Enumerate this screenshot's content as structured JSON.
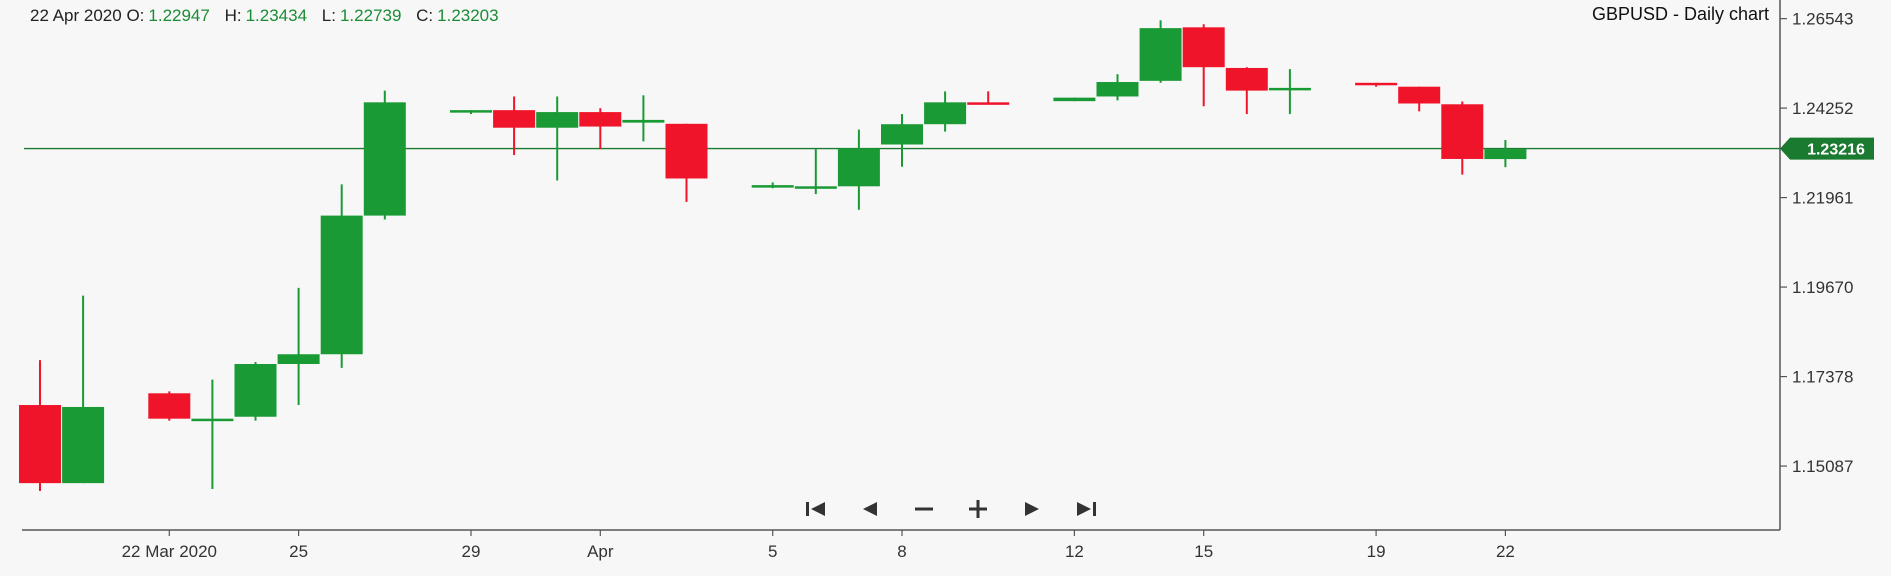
{
  "ohlc_readout": {
    "date": "22 Apr 2020",
    "open_label": "O:",
    "open": "1.22947",
    "high_label": "H:",
    "high": "1.23434",
    "low_label": "L:",
    "low": "1.22739",
    "close_label": "C:",
    "close": "1.23203"
  },
  "nav_controls": [
    {
      "name": "first-icon"
    },
    {
      "name": "prev-icon"
    },
    {
      "name": "zoom-out-icon"
    },
    {
      "name": "zoom-in-icon"
    },
    {
      "name": "next-icon"
    },
    {
      "name": "last-icon"
    }
  ],
  "chart_data": {
    "type": "candlestick",
    "title": "GBPUSD - Daily chart",
    "ylim": [
      1.1345,
      1.2702
    ],
    "y_ticks": [
      "1.26543",
      "1.24252",
      "1.21961",
      "1.19670",
      "1.17378",
      "1.15087"
    ],
    "x_ticks": [
      "22 Mar 2020",
      "25",
      "29",
      "Apr",
      "5",
      "8",
      "12",
      "15",
      "19",
      "22"
    ],
    "current_price": "1.23216",
    "colors": {
      "up": "#1a9a35",
      "down": "#f0142a",
      "price_line": "#1a7a30",
      "axis": "#555555",
      "grid_label": "#333333"
    },
    "candles": [
      {
        "date": "2020-03-19",
        "open": 1.1665,
        "high": 1.178,
        "low": 1.1445,
        "close": 1.1465
      },
      {
        "date": "2020-03-20",
        "open": 1.1465,
        "high": 1.1945,
        "low": 1.1465,
        "close": 1.166
      },
      {
        "date": "2020-03-22",
        "open": 1.1695,
        "high": 1.17,
        "low": 1.1625,
        "close": 1.163
      },
      {
        "date": "2020-03-23",
        "open": 1.1625,
        "high": 1.173,
        "low": 1.145,
        "close": 1.163
      },
      {
        "date": "2020-03-24",
        "open": 1.1635,
        "high": 1.1775,
        "low": 1.1625,
        "close": 1.177
      },
      {
        "date": "2020-03-25",
        "open": 1.177,
        "high": 1.1965,
        "low": 1.1665,
        "close": 1.1795
      },
      {
        "date": "2020-03-26",
        "open": 1.1795,
        "high": 1.223,
        "low": 1.176,
        "close": 1.215
      },
      {
        "date": "2020-03-27",
        "open": 1.215,
        "high": 1.247,
        "low": 1.214,
        "close": 1.244
      },
      {
        "date": "2020-03-29",
        "open": 1.2415,
        "high": 1.242,
        "low": 1.241,
        "close": 1.242
      },
      {
        "date": "2020-03-30",
        "open": 1.242,
        "high": 1.2455,
        "low": 1.2305,
        "close": 1.2375
      },
      {
        "date": "2020-03-31",
        "open": 1.2375,
        "high": 1.2455,
        "low": 1.224,
        "close": 1.2415
      },
      {
        "date": "2020-04-01",
        "open": 1.2415,
        "high": 1.2425,
        "low": 1.232,
        "close": 1.2378
      },
      {
        "date": "2020-04-02",
        "open": 1.2388,
        "high": 1.2458,
        "low": 1.234,
        "close": 1.2395
      },
      {
        "date": "2020-04-03",
        "open": 1.2385,
        "high": 1.2385,
        "low": 1.2185,
        "close": 1.2245
      },
      {
        "date": "2020-04-05",
        "open": 1.2225,
        "high": 1.2235,
        "low": 1.222,
        "close": 1.2228
      },
      {
        "date": "2020-04-06",
        "open": 1.222,
        "high": 1.232,
        "low": 1.2205,
        "close": 1.2225
      },
      {
        "date": "2020-04-07",
        "open": 1.2225,
        "high": 1.237,
        "low": 1.2165,
        "close": 1.2322
      },
      {
        "date": "2020-04-08",
        "open": 1.2332,
        "high": 1.241,
        "low": 1.2275,
        "close": 1.2384
      },
      {
        "date": "2020-04-09",
        "open": 1.2384,
        "high": 1.2468,
        "low": 1.2365,
        "close": 1.244
      },
      {
        "date": "2020-04-10",
        "open": 1.244,
        "high": 1.2468,
        "low": 1.2436,
        "close": 1.2438
      },
      {
        "date": "2020-04-12",
        "open": 1.2443,
        "high": 1.2452,
        "low": 1.2443,
        "close": 1.2452
      },
      {
        "date": "2020-04-13",
        "open": 1.2455,
        "high": 1.2512,
        "low": 1.2445,
        "close": 1.2492
      },
      {
        "date": "2020-04-14",
        "open": 1.2495,
        "high": 1.265,
        "low": 1.249,
        "close": 1.263
      },
      {
        "date": "2020-04-15",
        "open": 1.2632,
        "high": 1.264,
        "low": 1.243,
        "close": 1.253
      },
      {
        "date": "2020-04-16",
        "open": 1.2528,
        "high": 1.253,
        "low": 1.241,
        "close": 1.247
      },
      {
        "date": "2020-04-17",
        "open": 1.2473,
        "high": 1.2525,
        "low": 1.241,
        "close": 1.2477
      },
      {
        "date": "2020-04-19",
        "open": 1.249,
        "high": 1.249,
        "low": 1.248,
        "close": 1.2485
      },
      {
        "date": "2020-04-20",
        "open": 1.248,
        "high": 1.248,
        "low": 1.2417,
        "close": 1.2437
      },
      {
        "date": "2020-04-21",
        "open": 1.2435,
        "high": 1.2442,
        "low": 1.2255,
        "close": 1.2295
      },
      {
        "date": "2020-04-22",
        "open": 1.22947,
        "high": 1.23434,
        "low": 1.22739,
        "close": 1.23203
      }
    ]
  }
}
